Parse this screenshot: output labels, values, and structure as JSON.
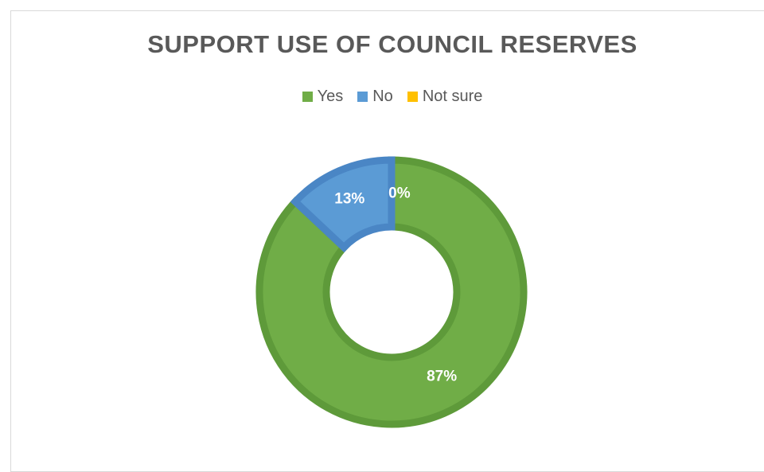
{
  "chart_data": {
    "type": "pie",
    "subtype": "doughnut",
    "title": "SUPPORT USE OF COUNCIL RESERVES",
    "legend_position": "top",
    "categories": [
      "Yes",
      "No",
      "Not sure"
    ],
    "values": [
      87,
      13,
      0
    ],
    "data_labels": [
      "87%",
      "13%",
      "0%"
    ],
    "colors": [
      "#70ad47",
      "#5b9bd5",
      "#ffc000"
    ],
    "border_colors": [
      "#5e9a3a",
      "#4a86c5",
      "#e0a800"
    ]
  }
}
